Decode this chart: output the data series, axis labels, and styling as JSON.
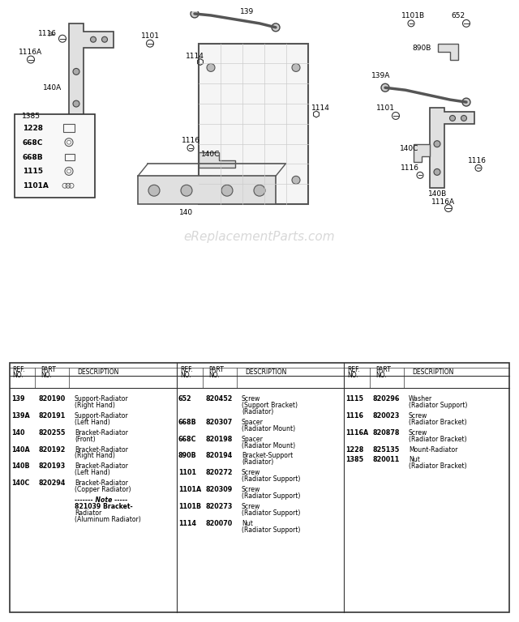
{
  "bg_color": "#ffffff",
  "watermark": "eReplacementParts.com",
  "table": {
    "col1": [
      [
        "139",
        "820190",
        "Support-Radiator\n(Right Hand)"
      ],
      [
        "139A",
        "820191",
        "Support-Radiator\n(Left Hand)"
      ],
      [
        "140",
        "820255",
        "Bracket-Radiator\n(Front)"
      ],
      [
        "140A",
        "820192",
        "Bracket-Radiator\n(Right Hand)"
      ],
      [
        "140B",
        "820193",
        "Bracket-Radiator\n(Left Hand)"
      ],
      [
        "140C",
        "820294",
        "Bracket-Radiator\n(Copper Radiator)"
      ],
      [
        "",
        "",
        "------- Note -----\n821039 Bracket-\nRadiator\n(Aluminum Radiator)"
      ]
    ],
    "col2": [
      [
        "652",
        "820452",
        "Screw\n(Support Bracket)\n(Radiator)"
      ],
      [
        "668B",
        "820307",
        "Spacer\n(Radiator Mount)"
      ],
      [
        "668C",
        "820198",
        "Spacer\n(Radiator Mount)"
      ],
      [
        "890B",
        "820194",
        "Bracket-Support\n(Radiator)"
      ],
      [
        "1101",
        "820272",
        "Screw\n(Radiator Support)"
      ],
      [
        "1101A",
        "820309",
        "Screw\n(Radiator Support)"
      ],
      [
        "1101B",
        "820273",
        "Screw\n(Radiator Support)"
      ],
      [
        "1114",
        "820070",
        "Nut\n(Radiator Support)"
      ]
    ],
    "col3": [
      [
        "1115",
        "820296",
        "Washer\n(Radiator Support)"
      ],
      [
        "1116",
        "820023",
        "Screw\n(Radiator Bracket)"
      ],
      [
        "1116A",
        "820878",
        "Screw\n(Radiator Bracket)"
      ],
      [
        "1228",
        "825135",
        "Mount-Radiator"
      ],
      [
        "1385",
        "820011",
        "Nut\n(Radiator Bracket)"
      ]
    ]
  },
  "legend_items": [
    "1228",
    "668C",
    "668B",
    "1115",
    "1101A"
  ],
  "diagram_labels": {
    "top_area": [
      "139",
      "1101",
      "1116",
      "1116A",
      "140A",
      "1385",
      "1114",
      "1116",
      "140C",
      "140",
      "1114"
    ],
    "right_area": [
      "652",
      "1101B",
      "890B",
      "139A",
      "1101",
      "140C",
      "1116",
      "1116",
      "140B",
      "1116A"
    ]
  }
}
